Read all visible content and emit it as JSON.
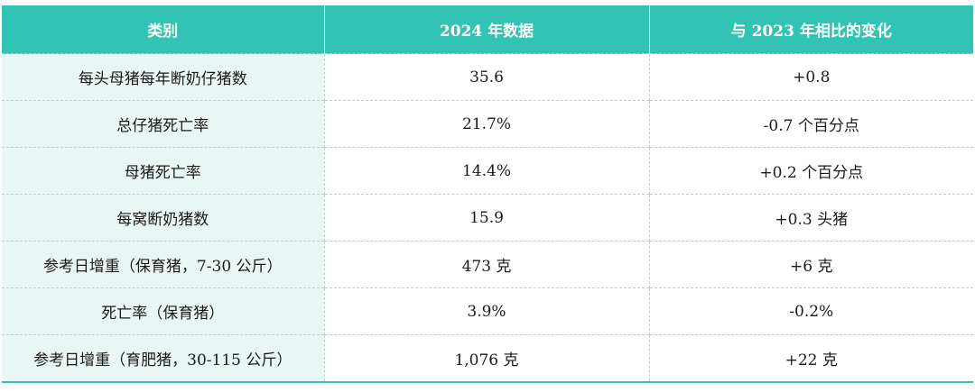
{
  "table": {
    "headers": [
      "类别",
      "2024 年数据",
      "与 2023 年相比的变化"
    ],
    "rows": [
      [
        "每头母猪每年断奶仔猪数",
        "35.6",
        "+0.8"
      ],
      [
        "总仔猪死亡率",
        "21.7%",
        "-0.7 个百分点"
      ],
      [
        "母猪死亡率",
        "14.4%",
        "+0.2 个百分点"
      ],
      [
        "每窝断奶猪数",
        "15.9",
        "+0.3 头猪"
      ],
      [
        "参考日增重（保育猪，7-30 公斤）",
        "473 克",
        "+6 克"
      ],
      [
        "死亡率（保育猪）",
        "3.9%",
        "-0.2%"
      ],
      [
        "参考日增重（育肥猪，30-115 公斤）",
        "1,076 克",
        "+22 克"
      ]
    ]
  },
  "colors": {
    "header_bg": "#33c3b4",
    "category_bg": "#e9f7f4"
  }
}
